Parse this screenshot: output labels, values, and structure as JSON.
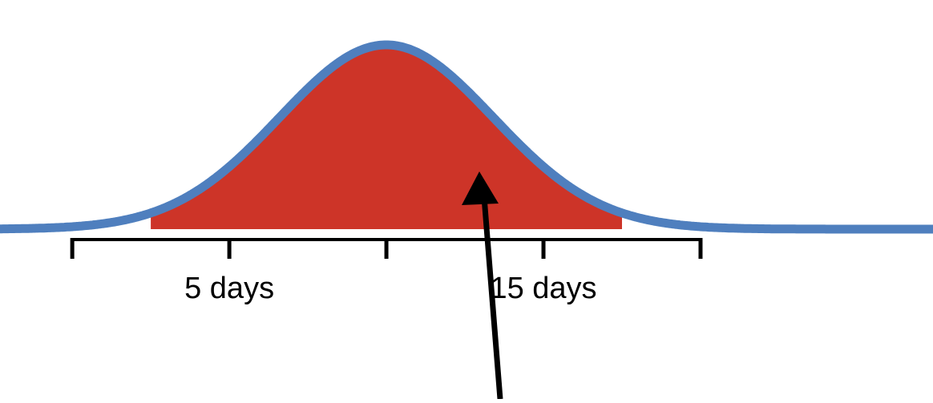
{
  "chart_data": {
    "type": "area",
    "distribution": "normal",
    "mean": 10,
    "sd": 3.4,
    "x_range": [
      0,
      25
    ],
    "tick_values": [
      0,
      5,
      10,
      15,
      20
    ],
    "tick_labels": [
      {
        "value": 5,
        "label": "5 days"
      },
      {
        "value": 15,
        "label": "15 days"
      }
    ],
    "shaded_interval": [
      2.5,
      17.5
    ],
    "title": "",
    "xlabel": "",
    "ylabel": "",
    "grid": false,
    "legend": "none"
  },
  "colors": {
    "curve": "#4f7fbe",
    "fill": "#cd3428",
    "axis": "#000000",
    "arrow": "#000000",
    "background": "#ffffff"
  },
  "annotation": {
    "type": "arrow",
    "points_to": "shaded-area"
  }
}
